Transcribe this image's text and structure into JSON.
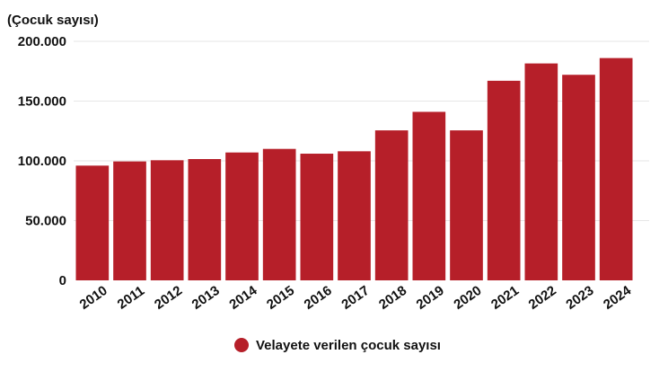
{
  "chart_data": {
    "type": "bar",
    "ylabel": "(Çocuk sayısı)",
    "categories": [
      "2010",
      "2011",
      "2012",
      "2013",
      "2014",
      "2015",
      "2016",
      "2017",
      "2018",
      "2019",
      "2020",
      "2021",
      "2022",
      "2023",
      "2024"
    ],
    "series": [
      {
        "name": "Velayete verilen çocuk sayısı",
        "color": "#b61f29",
        "values": [
          96000,
          99500,
          100500,
          101500,
          107000,
          110000,
          106000,
          108000,
          125500,
          141000,
          125500,
          167000,
          181500,
          172000,
          186000
        ]
      }
    ],
    "ylim": [
      0,
      200000
    ],
    "yticks": [
      0,
      50000,
      100000,
      150000,
      200000
    ],
    "ytick_labels": [
      "0",
      "50.000",
      "100.000",
      "150.000",
      "200.000"
    ],
    "grid": true,
    "legend_position": "bottom-center"
  }
}
